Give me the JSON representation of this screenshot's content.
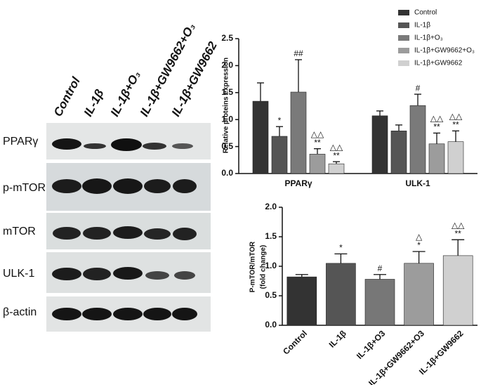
{
  "blot": {
    "column_labels": [
      "Control",
      "IL-1β",
      "IL-1β+O₃",
      "IL-1β+GW9662+O₃",
      "IL-1β+GW9662"
    ],
    "row_labels": [
      "PPARγ",
      "p-mTOR",
      "mTOR",
      "ULK-1",
      "β-actin"
    ]
  },
  "chart_data": [
    {
      "type": "grouped-bar",
      "y_label": "Relative proteins expression",
      "categories": [
        "PPARγ",
        "ULK-1"
      ],
      "ylim": [
        0,
        2.5
      ],
      "yticks": [
        {
          "value": 0,
          "label": "0.0"
        },
        0.5,
        {
          "value": 1,
          "label": "1.0"
        },
        1.5,
        {
          "value": 2,
          "label": "2.0"
        },
        2.5
      ],
      "legend": "top-right",
      "series": [
        {
          "name": "Control",
          "color": "#333333",
          "values": [
            1.34,
            1.07
          ],
          "errors": [
            0.34,
            0.09
          ],
          "annotations": [
            null,
            null
          ]
        },
        {
          "name": "IL-1β",
          "color": "#555555",
          "values": [
            0.69,
            0.79
          ],
          "errors": [
            0.18,
            0.11
          ],
          "annotations": [
            [
              "*"
            ],
            null
          ]
        },
        {
          "name": "IL-1β+O₃",
          "color": "#7a7a7a",
          "values": [
            1.51,
            1.26
          ],
          "errors": [
            0.6,
            0.21
          ],
          "annotations": [
            [
              "##"
            ],
            [
              "#"
            ]
          ]
        },
        {
          "name": "IL-1β+GW9662+O₃",
          "color": "#9c9c9c",
          "values": [
            0.36,
            0.55
          ],
          "errors": [
            0.1,
            0.2
          ],
          "annotations": [
            [
              "△△",
              "**"
            ],
            [
              "△△",
              "**"
            ]
          ]
        },
        {
          "name": "IL-1β+GW9662",
          "color": "#d0d0d0",
          "values": [
            0.18,
            0.59
          ],
          "errors": [
            0.04,
            0.2
          ],
          "annotations": [
            [
              "△△",
              "**"
            ],
            [
              "△△",
              "**"
            ]
          ]
        }
      ]
    },
    {
      "type": "bar",
      "y_label": [
        "P-mTOR/mTOR",
        "(fold change)"
      ],
      "categories": [
        "Control",
        "IL-1β",
        "IL-1β+O3",
        "IL-1β+GW9662+O3",
        "IL-1β+GW9662"
      ],
      "values": [
        0.82,
        1.05,
        0.78,
        1.05,
        1.18
      ],
      "errors": [
        0.04,
        0.16,
        0.08,
        0.2,
        0.27
      ],
      "colors": [
        "#333333",
        "#555555",
        "#777777",
        "#9c9c9c",
        "#d0d0d0"
      ],
      "annotations": [
        null,
        [
          "*"
        ],
        [
          "#"
        ],
        [
          "△",
          "*"
        ],
        [
          "△△",
          "**"
        ]
      ],
      "ylim": [
        0,
        2
      ],
      "yticks": [
        {
          "value": 0,
          "label": "0.0"
        },
        0.5,
        {
          "value": 1,
          "label": "1.0"
        },
        1.5,
        {
          "value": 2,
          "label": "2.0"
        }
      ]
    }
  ]
}
